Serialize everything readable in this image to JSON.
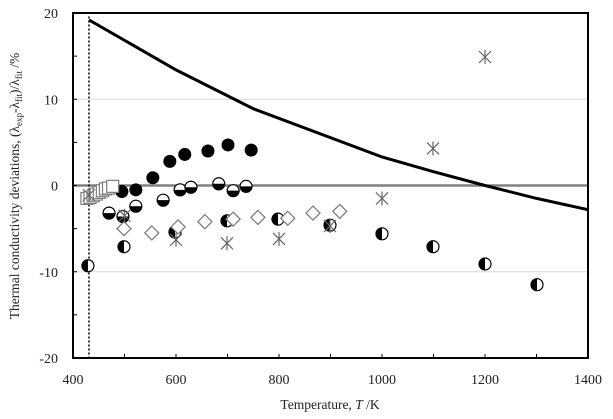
{
  "chart_data": {
    "type": "scatter",
    "title": "",
    "xlabel": "Temperature, T /K",
    "ylabel": "Thermal conductivity deviations, (λexp-λfit)/λfit /%",
    "xlim": [
      400,
      1400
    ],
    "ylim": [
      -20,
      20
    ],
    "x_ticks": [
      400,
      600,
      800,
      1000,
      1200,
      1400
    ],
    "y_ticks": [
      -20,
      -10,
      0,
      10,
      20
    ],
    "grid": {
      "y_major": [
        10,
        -10
      ],
      "zero_line": true
    },
    "reference_vline_x": 431,
    "series": [
      {
        "name": "correlation-curve",
        "kind": "line",
        "color": "#000000",
        "points": [
          [
            431,
            19.2
          ],
          [
            600,
            13.4
          ],
          [
            750,
            8.9
          ],
          [
            1000,
            3.3
          ],
          [
            1100,
            1.6
          ],
          [
            1200,
            0.0
          ],
          [
            1300,
            -1.5
          ],
          [
            1400,
            -2.8
          ]
        ]
      },
      {
        "name": "solid-circles",
        "marker": "filled-circle",
        "points": [
          [
            495,
            -0.7
          ],
          [
            522,
            -0.5
          ],
          [
            555,
            0.9
          ],
          [
            588,
            2.8
          ],
          [
            617,
            3.6
          ],
          [
            662,
            4.0
          ],
          [
            701,
            4.7
          ],
          [
            746,
            4.1
          ]
        ]
      },
      {
        "name": "top-half-filled-circles",
        "marker": "half-circle-bottom-black",
        "points": [
          [
            470,
            -3.2
          ],
          [
            497,
            -3.6
          ],
          [
            522,
            -2.4
          ],
          [
            575,
            -1.7
          ],
          [
            608,
            -0.5
          ],
          [
            629,
            -0.2
          ],
          [
            683,
            0.2
          ],
          [
            711,
            -0.6
          ],
          [
            736,
            -0.1
          ]
        ]
      },
      {
        "name": "left-half-filled-circles",
        "marker": "half-circle-left-black",
        "points": [
          [
            429,
            -9.3
          ],
          [
            499,
            -7.1
          ],
          [
            598,
            -5.4
          ],
          [
            699,
            -4.1
          ],
          [
            798,
            -3.9
          ],
          [
            899,
            -4.6
          ],
          [
            1000,
            -5.6
          ],
          [
            1099,
            -7.1
          ],
          [
            1200,
            -9.1
          ],
          [
            1301,
            -11.5
          ]
        ]
      },
      {
        "name": "open-diamonds",
        "marker": "open-diamond",
        "points": [
          [
            499,
            -5.0
          ],
          [
            553,
            -5.5
          ],
          [
            604,
            -4.8
          ],
          [
            656,
            -4.2
          ],
          [
            711,
            -3.9
          ],
          [
            759,
            -3.7
          ],
          [
            817,
            -3.8
          ],
          [
            866,
            -3.2
          ],
          [
            918,
            -3.0
          ]
        ]
      },
      {
        "name": "open-squares",
        "marker": "open-square",
        "points": [
          [
            427,
            -1.5
          ],
          [
            433,
            -1.4
          ],
          [
            439,
            -1.2
          ],
          [
            445,
            -1.0
          ],
          [
            451,
            -0.8
          ],
          [
            457,
            -0.6
          ],
          [
            463,
            -0.4
          ],
          [
            469,
            -0.3
          ],
          [
            477,
            -0.1
          ]
        ]
      },
      {
        "name": "asterisks",
        "marker": "asterisk",
        "points": [
          [
            431,
            -1.1
          ],
          [
            500,
            -3.5
          ],
          [
            600,
            -6.3
          ],
          [
            699,
            -6.7
          ],
          [
            800,
            -6.2
          ],
          [
            899,
            -4.7
          ],
          [
            1000,
            -1.5
          ],
          [
            1099,
            4.3
          ],
          [
            1200,
            14.9
          ]
        ]
      }
    ]
  },
  "axes": {
    "x_title_main": "Temperature, ",
    "x_title_var": "T",
    "x_title_unit": " /K",
    "y_title_text": "Thermal conductivity deviations, (λ",
    "y_sub_exp": "exp",
    "y_mid": "-λ",
    "y_sub_fit": "fit",
    "y_mid2": ")/λ",
    "y_sub_fit2": "fit",
    "y_unit": " /%"
  },
  "colors": {
    "axis": "#000000",
    "grid": "#d9d9d9",
    "zero_line": "#808080",
    "marker_open": "#7f7f7f",
    "marker_fill": "#000000"
  }
}
